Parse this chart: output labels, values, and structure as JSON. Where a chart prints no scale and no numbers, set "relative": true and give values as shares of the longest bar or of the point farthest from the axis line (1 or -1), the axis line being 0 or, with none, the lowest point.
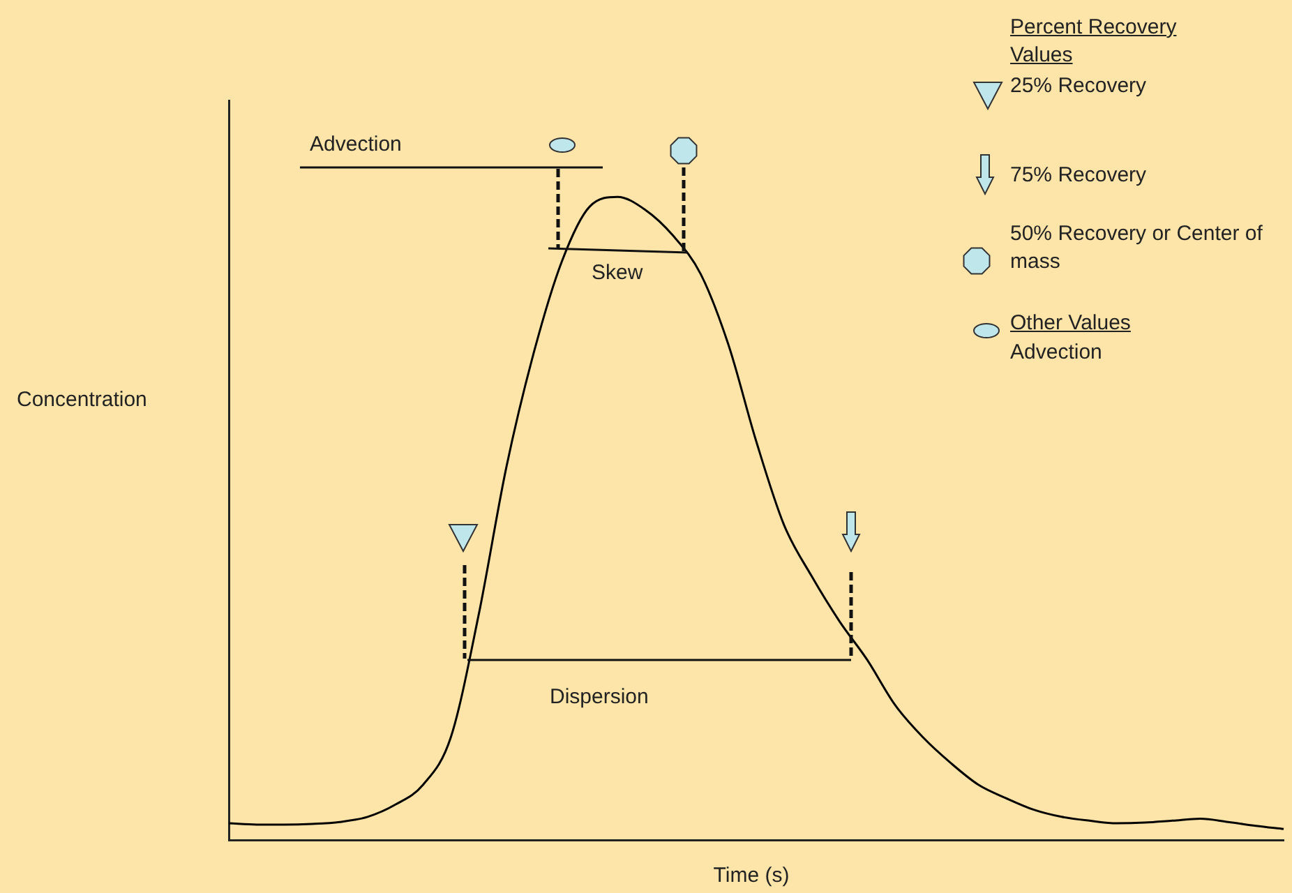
{
  "chart_data": {
    "type": "line",
    "relative": true,
    "xlabel": "Time (s)",
    "ylabel": "Concentration",
    "legend": false,
    "marker": "none",
    "line_style": "solid",
    "categories": [
      null,
      null,
      null,
      null,
      null,
      null,
      null,
      null,
      null,
      null,
      null,
      null,
      null,
      null,
      null,
      null,
      null,
      null,
      null,
      null,
      null,
      null,
      null,
      null,
      null,
      null,
      null,
      null,
      null,
      null,
      null,
      null,
      null,
      null,
      null,
      null,
      null,
      null,
      null
    ],
    "series": [
      {
        "color": "#000000",
        "values": [
          0.026,
          0.024,
          0.024,
          0.025,
          0.028,
          0.036,
          0.055,
          0.086,
          0.16,
          0.35,
          0.58,
          0.76,
          0.9,
          0.985,
          1.0,
          0.98,
          0.94,
          0.88,
          0.77,
          0.62,
          0.49,
          0.41,
          0.34,
          0.28,
          0.21,
          0.16,
          0.12,
          0.086,
          0.065,
          0.047,
          0.036,
          0.03,
          0.026,
          0.027,
          0.03,
          0.033,
          0.028,
          0.022,
          0.017
        ]
      }
    ],
    "annotations": [
      "Advection",
      "Skew",
      "Dispersion",
      "Percent Recovery Values",
      "25% Recovery",
      "75% Recovery",
      "50% Recovery or Center of mass",
      "Other Values",
      "Advection"
    ]
  }
}
